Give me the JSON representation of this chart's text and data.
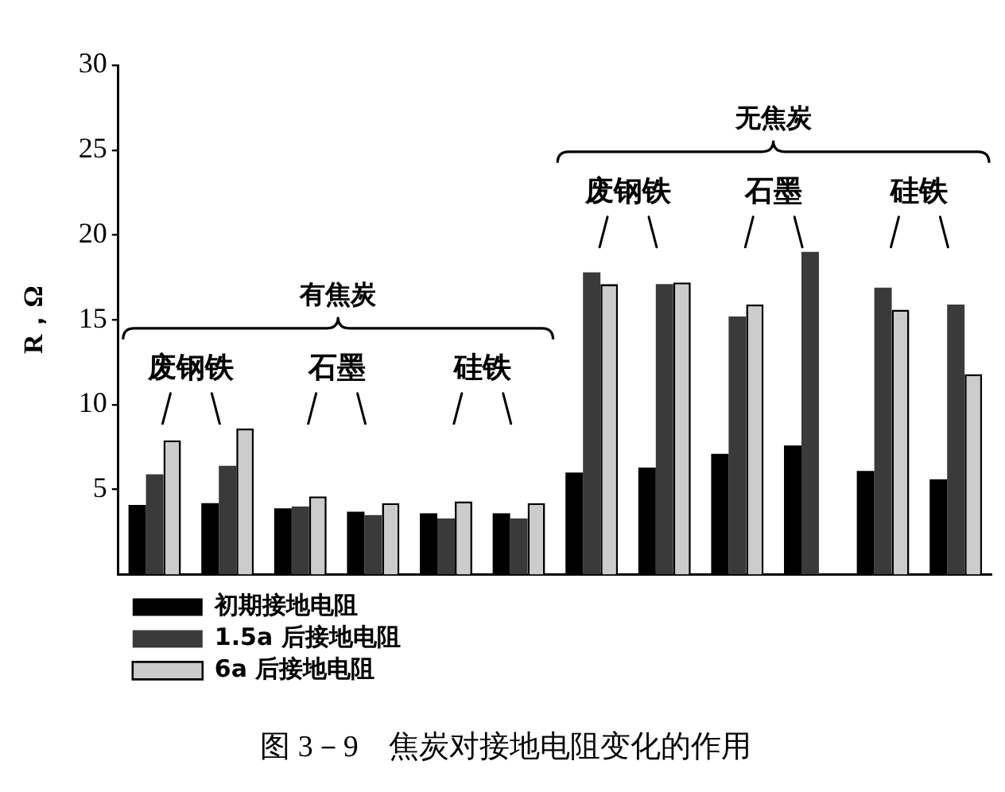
{
  "chart_data": {
    "type": "bar",
    "title": "图 3－9　焦炭对接地电阻变化的作用",
    "ylabel": "R，Ω",
    "categories": [
      null,
      null,
      null,
      null,
      null,
      null,
      null,
      null,
      null,
      null,
      null,
      null
    ],
    "series": [
      {
        "name": "初期接地电阻",
        "color": "#000000",
        "values": [
          4.1,
          4.2,
          3.9,
          3.7,
          3.6,
          3.6,
          6.0,
          6.3,
          7.1,
          7.6,
          6.1,
          5.6
        ]
      },
      {
        "name": "1.5a 后接地电阻",
        "color": "#3a3a3a",
        "values": [
          5.9,
          6.4,
          4.0,
          3.5,
          3.3,
          3.3,
          17.8,
          17.1,
          15.2,
          19.0,
          16.9,
          15.9
        ]
      },
      {
        "name": "6a 后接地电阻",
        "color": "#cccccc",
        "values": [
          7.9,
          8.6,
          4.6,
          4.2,
          4.3,
          4.2,
          17.1,
          17.2,
          15.9,
          null,
          15.6,
          11.8
        ]
      }
    ],
    "annotations": [
      "有焦炭",
      "废钢铁",
      "石墨",
      "硅铁",
      "无焦炭",
      "废钢铁",
      "石墨",
      "硅铁"
    ],
    "ylim": [
      0,
      30
    ],
    "yticks": [
      5,
      10,
      15,
      20,
      25,
      30
    ],
    "legend": "bottom left",
    "tick_labels": "y"
  }
}
